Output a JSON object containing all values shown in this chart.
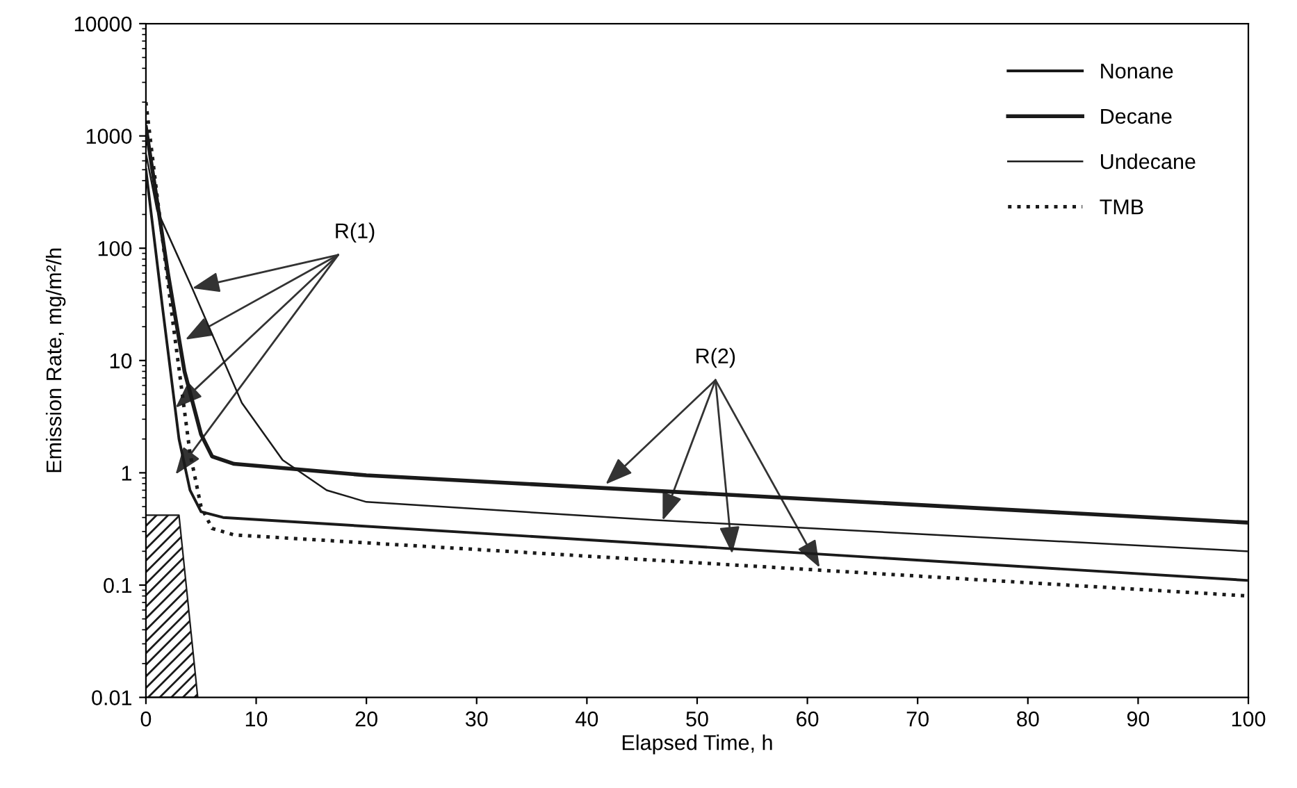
{
  "chart_data": {
    "type": "line",
    "xlabel": "Elapsed Time, h",
    "ylabel": "Emission Rate, mg/m²/h",
    "log": "y",
    "xlim": [
      0,
      100
    ],
    "xticks": [
      0,
      10,
      20,
      30,
      40,
      50,
      60,
      70,
      80,
      90,
      100
    ],
    "ylim": [
      0.01,
      10000
    ],
    "yticks": [
      0.01,
      0.1,
      1,
      10,
      100,
      1000,
      10000
    ],
    "grid": false,
    "legend": "top right",
    "marker": "none",
    "series": [
      {
        "name": "Nonane",
        "color": "#1a1a1a",
        "line_style": "solid",
        "x": [
          0,
          1.5,
          3,
          4,
          5,
          7,
          100
        ],
        "values": [
          500,
          30,
          2,
          0.7,
          0.45,
          0.4,
          0.11
        ]
      },
      {
        "name": "Decane",
        "color": "#1a1a1a",
        "line_style": "solid",
        "x": [
          0,
          2,
          3.5,
          5,
          6,
          8,
          20,
          100
        ],
        "values": [
          1200,
          60,
          8,
          2.2,
          1.4,
          1.2,
          0.95,
          0.36
        ]
      },
      {
        "name": "Undecane",
        "color": "#1a1a1a",
        "line_style": "solid",
        "x": [
          0,
          1,
          4.2,
          8.7,
          12.4,
          16.4,
          20,
          46,
          100
        ],
        "values": [
          700,
          220,
          44,
          4.2,
          1.3,
          0.7,
          0.55,
          0.38,
          0.2
        ]
      },
      {
        "name": "TMB",
        "color": "#1a1a1a",
        "line_style": "dotted",
        "x": [
          0,
          1,
          2.5,
          4,
          5,
          6,
          8,
          100
        ],
        "values": [
          2000,
          300,
          20,
          1.5,
          0.5,
          0.32,
          0.28,
          0.08
        ]
      },
      {
        "type": "area",
        "color": "#1a1a1a",
        "x": [
          0,
          3,
          4.7
        ],
        "values": [
          0.42,
          0.42,
          0.01
        ]
      }
    ],
    "annotations": [
      {
        "text": "R(1)",
        "x": 4.2,
        "y": 44
      },
      {
        "text": "R(2)",
        "x": 41.7,
        "y": 0.79
      }
    ]
  }
}
